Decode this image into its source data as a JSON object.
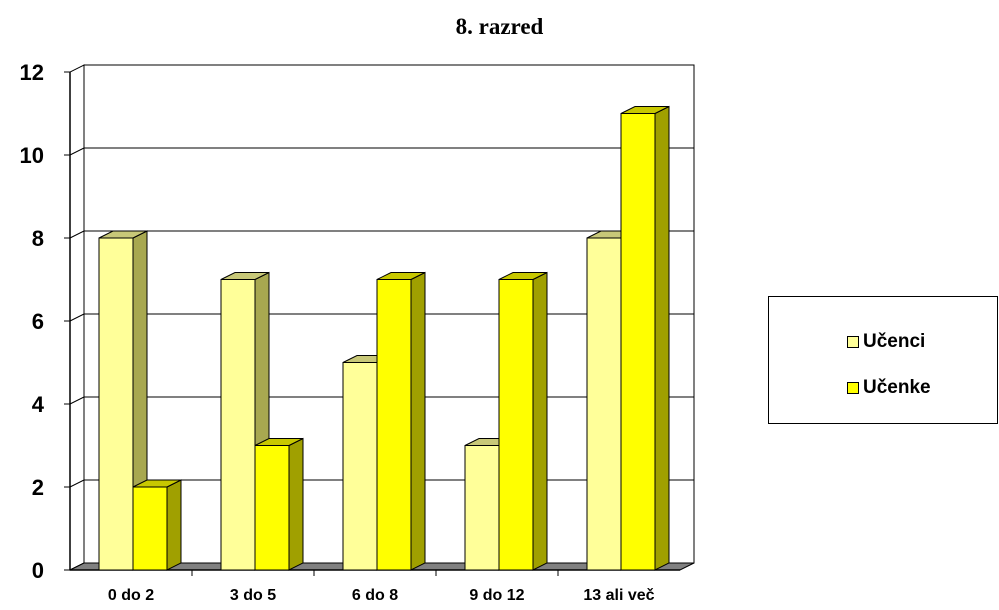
{
  "chart_data": {
    "type": "bar",
    "title": "8. razred",
    "xlabel": "",
    "ylabel": "",
    "categories": [
      "0 do 2",
      "3 do 5",
      "6 do 8",
      "9 do 12",
      "13 ali več"
    ],
    "series": [
      {
        "name": "Učenci",
        "values": [
          8,
          7,
          5,
          3,
          8
        ],
        "color": "#FFFF99",
        "side_color": "#A8A850",
        "top_color": "#C8C878"
      },
      {
        "name": "Učenke",
        "values": [
          2,
          3,
          7,
          7,
          11
        ],
        "color": "#FFFF00",
        "side_color": "#A0A000",
        "top_color": "#C8C800"
      }
    ],
    "ylim": [
      0,
      12
    ],
    "yticks": [
      0,
      2,
      4,
      6,
      8,
      10,
      12
    ],
    "grid": true,
    "legend_position": "right",
    "floor_color": "#808080"
  }
}
